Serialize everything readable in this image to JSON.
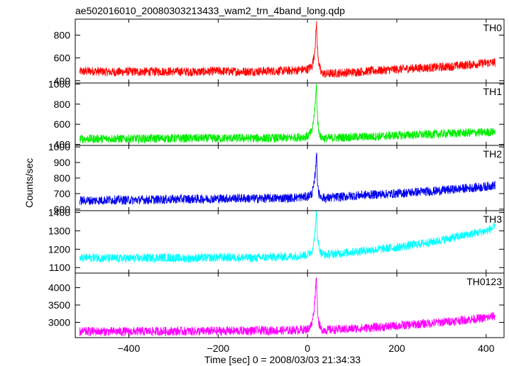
{
  "chart_data": {
    "type": "line",
    "title": "ae502016010_20080303213433_wam2_trn_4band_long.qdp",
    "xlabel": "Time [sec] 0 = 2008/03/03 21:34:33",
    "ylabel": "Counts/sec",
    "xlim": [
      -520,
      440
    ],
    "x_ticks": [
      -400,
      -200,
      0,
      200,
      400
    ],
    "x_tick_labels": [
      "−400",
      "−200",
      "0",
      "200",
      "400"
    ],
    "grid": false,
    "series": [
      {
        "name": "TH0",
        "color": "#ff0000",
        "ylim": [
          380,
          940
        ],
        "y_ticks": [
          400,
          600,
          800
        ],
        "x": [
          -510,
          -480,
          -440,
          -400,
          -360,
          -320,
          -280,
          -240,
          -200,
          -160,
          -120,
          -80,
          -40,
          0,
          10,
          15,
          18,
          20,
          22,
          25,
          30,
          40,
          80,
          120,
          160,
          200,
          240,
          280,
          320,
          360,
          400,
          420
        ],
        "values": [
          480,
          485,
          475,
          480,
          478,
          482,
          480,
          478,
          485,
          480,
          482,
          485,
          488,
          500,
          530,
          620,
          760,
          910,
          700,
          560,
          470,
          460,
          470,
          480,
          490,
          500,
          510,
          515,
          525,
          540,
          555,
          560
        ]
      },
      {
        "name": "TH1",
        "color": "#00ee00",
        "ylim": [
          390,
          1010
        ],
        "y_ticks": [
          400,
          600,
          800,
          1000
        ],
        "x": [
          -510,
          -480,
          -440,
          -400,
          -360,
          -320,
          -280,
          -240,
          -200,
          -160,
          -120,
          -80,
          -40,
          0,
          10,
          15,
          18,
          20,
          22,
          25,
          30,
          40,
          80,
          120,
          160,
          200,
          240,
          280,
          320,
          360,
          400,
          420
        ],
        "values": [
          455,
          455,
          458,
          455,
          458,
          460,
          460,
          462,
          460,
          462,
          462,
          462,
          465,
          480,
          530,
          680,
          860,
          990,
          700,
          540,
          470,
          460,
          470,
          475,
          480,
          490,
          495,
          500,
          510,
          515,
          520,
          525
        ]
      },
      {
        "name": "TH2",
        "color": "#0000ee",
        "ylim": [
          590,
          1010
        ],
        "y_ticks": [
          600,
          700,
          800,
          900,
          1000
        ],
        "x": [
          -510,
          -480,
          -440,
          -400,
          -360,
          -320,
          -280,
          -240,
          -200,
          -160,
          -120,
          -80,
          -40,
          0,
          10,
          15,
          18,
          20,
          22,
          25,
          30,
          40,
          80,
          120,
          160,
          200,
          240,
          280,
          320,
          360,
          400,
          420
        ],
        "values": [
          655,
          655,
          660,
          658,
          660,
          662,
          665,
          665,
          668,
          670,
          668,
          670,
          672,
          680,
          700,
          760,
          860,
          980,
          800,
          700,
          680,
          670,
          680,
          690,
          695,
          700,
          710,
          715,
          725,
          735,
          745,
          755
        ]
      },
      {
        "name": "TH3",
        "color": "#00ffff",
        "ylim": [
          1070,
          1410
        ],
        "y_ticks": [
          1100,
          1200,
          1300,
          1400
        ],
        "x": [
          -510,
          -480,
          -440,
          -400,
          -360,
          -320,
          -280,
          -240,
          -200,
          -160,
          -120,
          -80,
          -40,
          0,
          10,
          15,
          18,
          20,
          22,
          25,
          30,
          40,
          80,
          120,
          160,
          200,
          240,
          280,
          320,
          360,
          400,
          420
        ],
        "values": [
          1150,
          1155,
          1150,
          1150,
          1152,
          1155,
          1150,
          1152,
          1155,
          1155,
          1152,
          1158,
          1160,
          1170,
          1190,
          1250,
          1330,
          1400,
          1290,
          1220,
          1180,
          1170,
          1180,
          1190,
          1200,
          1210,
          1225,
          1240,
          1260,
          1280,
          1300,
          1320
        ]
      },
      {
        "name": "TH0123",
        "color": "#ff00ff",
        "ylim": [
          2560,
          4420
        ],
        "y_ticks": [
          3000,
          3500,
          4000
        ],
        "x": [
          -510,
          -480,
          -440,
          -400,
          -360,
          -320,
          -280,
          -240,
          -200,
          -160,
          -120,
          -80,
          -40,
          0,
          10,
          15,
          18,
          20,
          22,
          25,
          30,
          40,
          80,
          120,
          160,
          200,
          240,
          280,
          320,
          360,
          400,
          420
        ],
        "values": [
          2730,
          2740,
          2735,
          2735,
          2740,
          2745,
          2745,
          2745,
          2750,
          2755,
          2760,
          2765,
          2770,
          2800,
          2950,
          3400,
          4000,
          4350,
          3500,
          3000,
          2800,
          2780,
          2800,
          2830,
          2860,
          2900,
          2940,
          2980,
          3030,
          3080,
          3130,
          3190
        ]
      }
    ]
  }
}
